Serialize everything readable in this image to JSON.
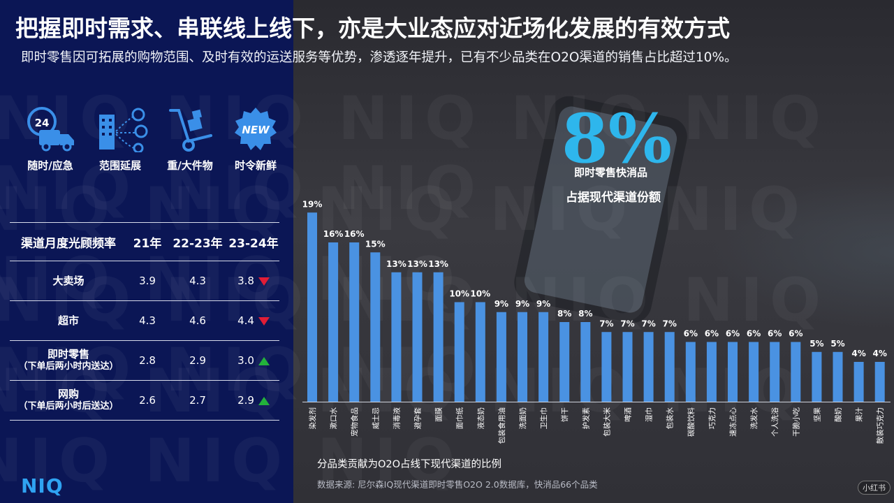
{
  "header": {
    "title": "把握即时需求、串联线上线下，亦是大业态应对近场化发展的有效方式",
    "subtitle": "即时零售因可拓展的购物范围、及时有效的运送服务等优势，渗透逐年提升，已有不少品类在O2O渠道的销售占比超过10%。"
  },
  "icons": [
    {
      "icon": "delivery-truck-24h-icon",
      "label": "随时/应急",
      "badge": "24"
    },
    {
      "icon": "building-network-icon",
      "label": "范围延展"
    },
    {
      "icon": "hand-truck-icon",
      "label": "重/大件物"
    },
    {
      "icon": "new-badge-icon",
      "label": "时令新鲜",
      "badge": "NEW"
    }
  ],
  "table": {
    "headers": [
      "渠道月度光顾频率",
      "21年",
      "22-23年",
      "23-24年"
    ],
    "rows": [
      {
        "channel": "大卖场",
        "note": "",
        "v1": "3.9",
        "v2": "4.3",
        "v3": "3.8",
        "trend": "down"
      },
      {
        "channel": "超市",
        "note": "",
        "v1": "4.3",
        "v2": "4.6",
        "v3": "4.4",
        "trend": "down"
      },
      {
        "channel": "即时零售",
        "note": "（下单后两小时内送达）",
        "v1": "2.8",
        "v2": "2.9",
        "v3": "3.0",
        "trend": "up"
      },
      {
        "channel": "网购",
        "note": "（下单后两小时后送达）",
        "v1": "2.6",
        "v2": "2.7",
        "v3": "2.9",
        "trend": "up"
      }
    ]
  },
  "highlight": {
    "value": "8%",
    "line1": "即时零售快消品",
    "line2": "占据现代渠道份额"
  },
  "footer": {
    "caption": "分品类贡献为O2O占线下现代渠道的比例",
    "source": "数据来源: 尼尔森IQ现代渠道即时零售O2O 2.0数据库，快消品66个品类",
    "logo": "NIQ",
    "corner": "小红书"
  },
  "colors": {
    "bar": "#4a92e2",
    "up": "#23b33b",
    "down": "#e11d36",
    "accent": "#2eb6ec"
  },
  "chart_data": {
    "type": "bar",
    "categories": [
      "染发剂",
      "漱口水",
      "宠物食品",
      "威士忌",
      "消毒液",
      "避孕套",
      "面膜",
      "面巾纸",
      "液态奶",
      "包装食用油",
      "洗面奶",
      "卫生巾",
      "饼干",
      "护发素",
      "包装大米",
      "啤酒",
      "湿巾",
      "包装水",
      "碳酸饮料",
      "巧克力",
      "速冻点心",
      "洗发水",
      "个人洗浴",
      "干脆小吃",
      "坚果",
      "酸奶",
      "果汁",
      "散装巧克力"
    ],
    "values": [
      19,
      16,
      16,
      15,
      13,
      13,
      13,
      10,
      10,
      9,
      9,
      9,
      8,
      8,
      7,
      7,
      7,
      7,
      6,
      6,
      6,
      6,
      6,
      6,
      5,
      5,
      4,
      4
    ],
    "data_labels": [
      "19%",
      "16%",
      "16%",
      "15%",
      "13%",
      "13%",
      "13%",
      "10%",
      "10%",
      "9%",
      "9%",
      "9%",
      "8%",
      "8%",
      "7%",
      "7%",
      "7%",
      "7%",
      "6%",
      "6%",
      "6%",
      "6%",
      "6%",
      "6%",
      "5%",
      "5%",
      "4%",
      "4%"
    ],
    "title": "",
    "xlabel": "",
    "ylabel": "",
    "ylim": [
      0,
      20
    ],
    "grid": false,
    "legend": "none"
  }
}
